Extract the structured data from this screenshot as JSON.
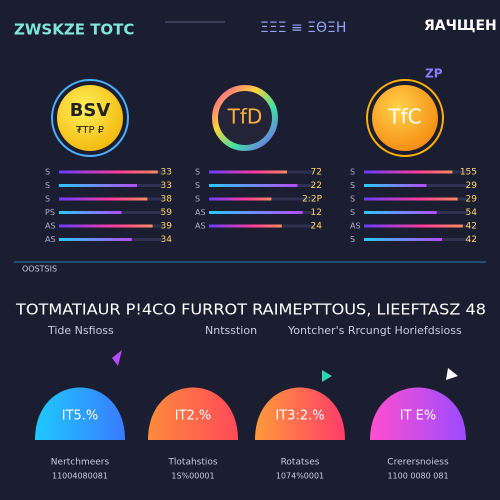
{
  "header": {
    "logo": "ZWSKZE TOTC",
    "center": "ΞΞΞ ≡ ΞΘΞH",
    "right": "ЯAЧЩEH",
    "badge": "ZP"
  },
  "coins": [
    {
      "label": "BSV",
      "sub": "₮TP ₽",
      "rows": [
        {
          "label": "S",
          "value": "33"
        },
        {
          "label": "S",
          "value": "33"
        },
        {
          "label": "S",
          "value": "38"
        },
        {
          "label": "PS",
          "value": "59"
        },
        {
          "label": "AS",
          "value": "39"
        },
        {
          "label": "AS",
          "value": "34"
        }
      ]
    },
    {
      "label": "TfD",
      "sub": "",
      "rows": [
        {
          "label": "S",
          "value": "72"
        },
        {
          "label": "S",
          "value": "22"
        },
        {
          "label": "S",
          "value": "2:2P"
        },
        {
          "label": "AS",
          "value": "12"
        },
        {
          "label": "AS",
          "value": "24"
        }
      ]
    },
    {
      "label": "TfC",
      "sub": "",
      "rows": [
        {
          "label": "S",
          "value": "155"
        },
        {
          "label": "S",
          "value": "29"
        },
        {
          "label": "S",
          "value": "29"
        },
        {
          "label": "S",
          "value": "54"
        },
        {
          "label": "AS",
          "value": "42"
        },
        {
          "label": "S",
          "value": "42"
        }
      ]
    }
  ],
  "divider_label": "OOSTSIS",
  "headline": "TOTMATIAUR P!4CO FURROT RAIMEPTTOUS, LIEEFTASZ 48",
  "subheads": [
    "Tide Nsfioss",
    "Nntsstion",
    "Yontcher's Rrcungt Horiefdsioss"
  ],
  "cards": [
    {
      "value": "IT5.%",
      "name": "Nertchmeers",
      "code": "11004080081"
    },
    {
      "value": "IT2.%",
      "name": "Tlotahstios",
      "code": "1S%00001"
    },
    {
      "value": "IT3:2.%",
      "name": "Rotatses",
      "code": "1074%0001"
    },
    {
      "value": "IT E%",
      "name": "Crerersnoiess",
      "code": "1100 0080 081"
    }
  ]
}
